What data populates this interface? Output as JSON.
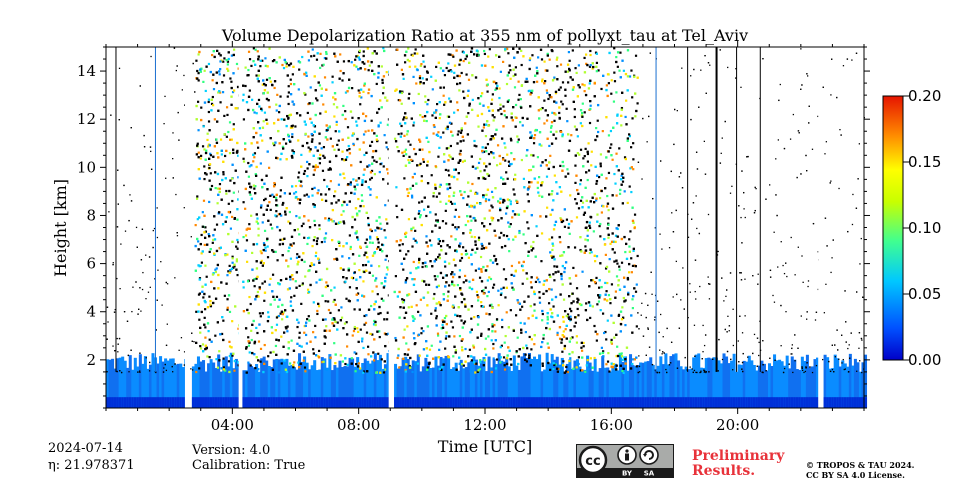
{
  "chart_data": {
    "type": "heatmap",
    "title": "Volume Depolarization Ratio at 355 nm of pollyxt_tau at Tel_Aviv",
    "xlabel": "Time [UTC]",
    "ylabel": "Height [km]",
    "xlim": [
      0,
      24
    ],
    "ylim": [
      0,
      15
    ],
    "x_ticks": [
      4,
      8,
      12,
      16,
      20
    ],
    "x_tick_labels": [
      "04:00",
      "08:00",
      "12:00",
      "16:00",
      "20:00"
    ],
    "y_ticks": [
      2,
      4,
      6,
      8,
      10,
      12,
      14
    ],
    "y_tick_labels": [
      "2",
      "4",
      "6",
      "8",
      "10",
      "12",
      "14"
    ],
    "colorbar": {
      "min": 0.0,
      "max": 0.2,
      "ticks": [
        0.0,
        0.05,
        0.1,
        0.15,
        0.2
      ],
      "tick_labels": [
        "0.00",
        "0.05",
        "0.10",
        "0.15",
        "0.20"
      ],
      "colormap": "jet"
    },
    "gaps_utc": [
      [
        2.5,
        2.65
      ],
      [
        4.2,
        4.3
      ],
      [
        8.95,
        9.1
      ],
      [
        22.55,
        22.65
      ]
    ],
    "dense_noise_interval_utc": [
      2.8,
      16.8
    ],
    "boundary_layer_top_km": 1.5
  },
  "footer": {
    "date": "2024-07-14",
    "eta": "η: 21.978371",
    "version": "Version: 4.0",
    "calibration": "Calibration: True",
    "preliminary_line1": "Preliminary",
    "preliminary_line2": "Results.",
    "license_line1": "© TROPOS & TAU 2024.",
    "license_line2": "CC BY SA 4.0 License.",
    "badge_text_by": "BY",
    "badge_text_sa": "SA"
  },
  "colors": {
    "preliminary": "#e8323a",
    "badge_bg": "#a9aba9",
    "badge_dark": "#1a1a1a"
  }
}
